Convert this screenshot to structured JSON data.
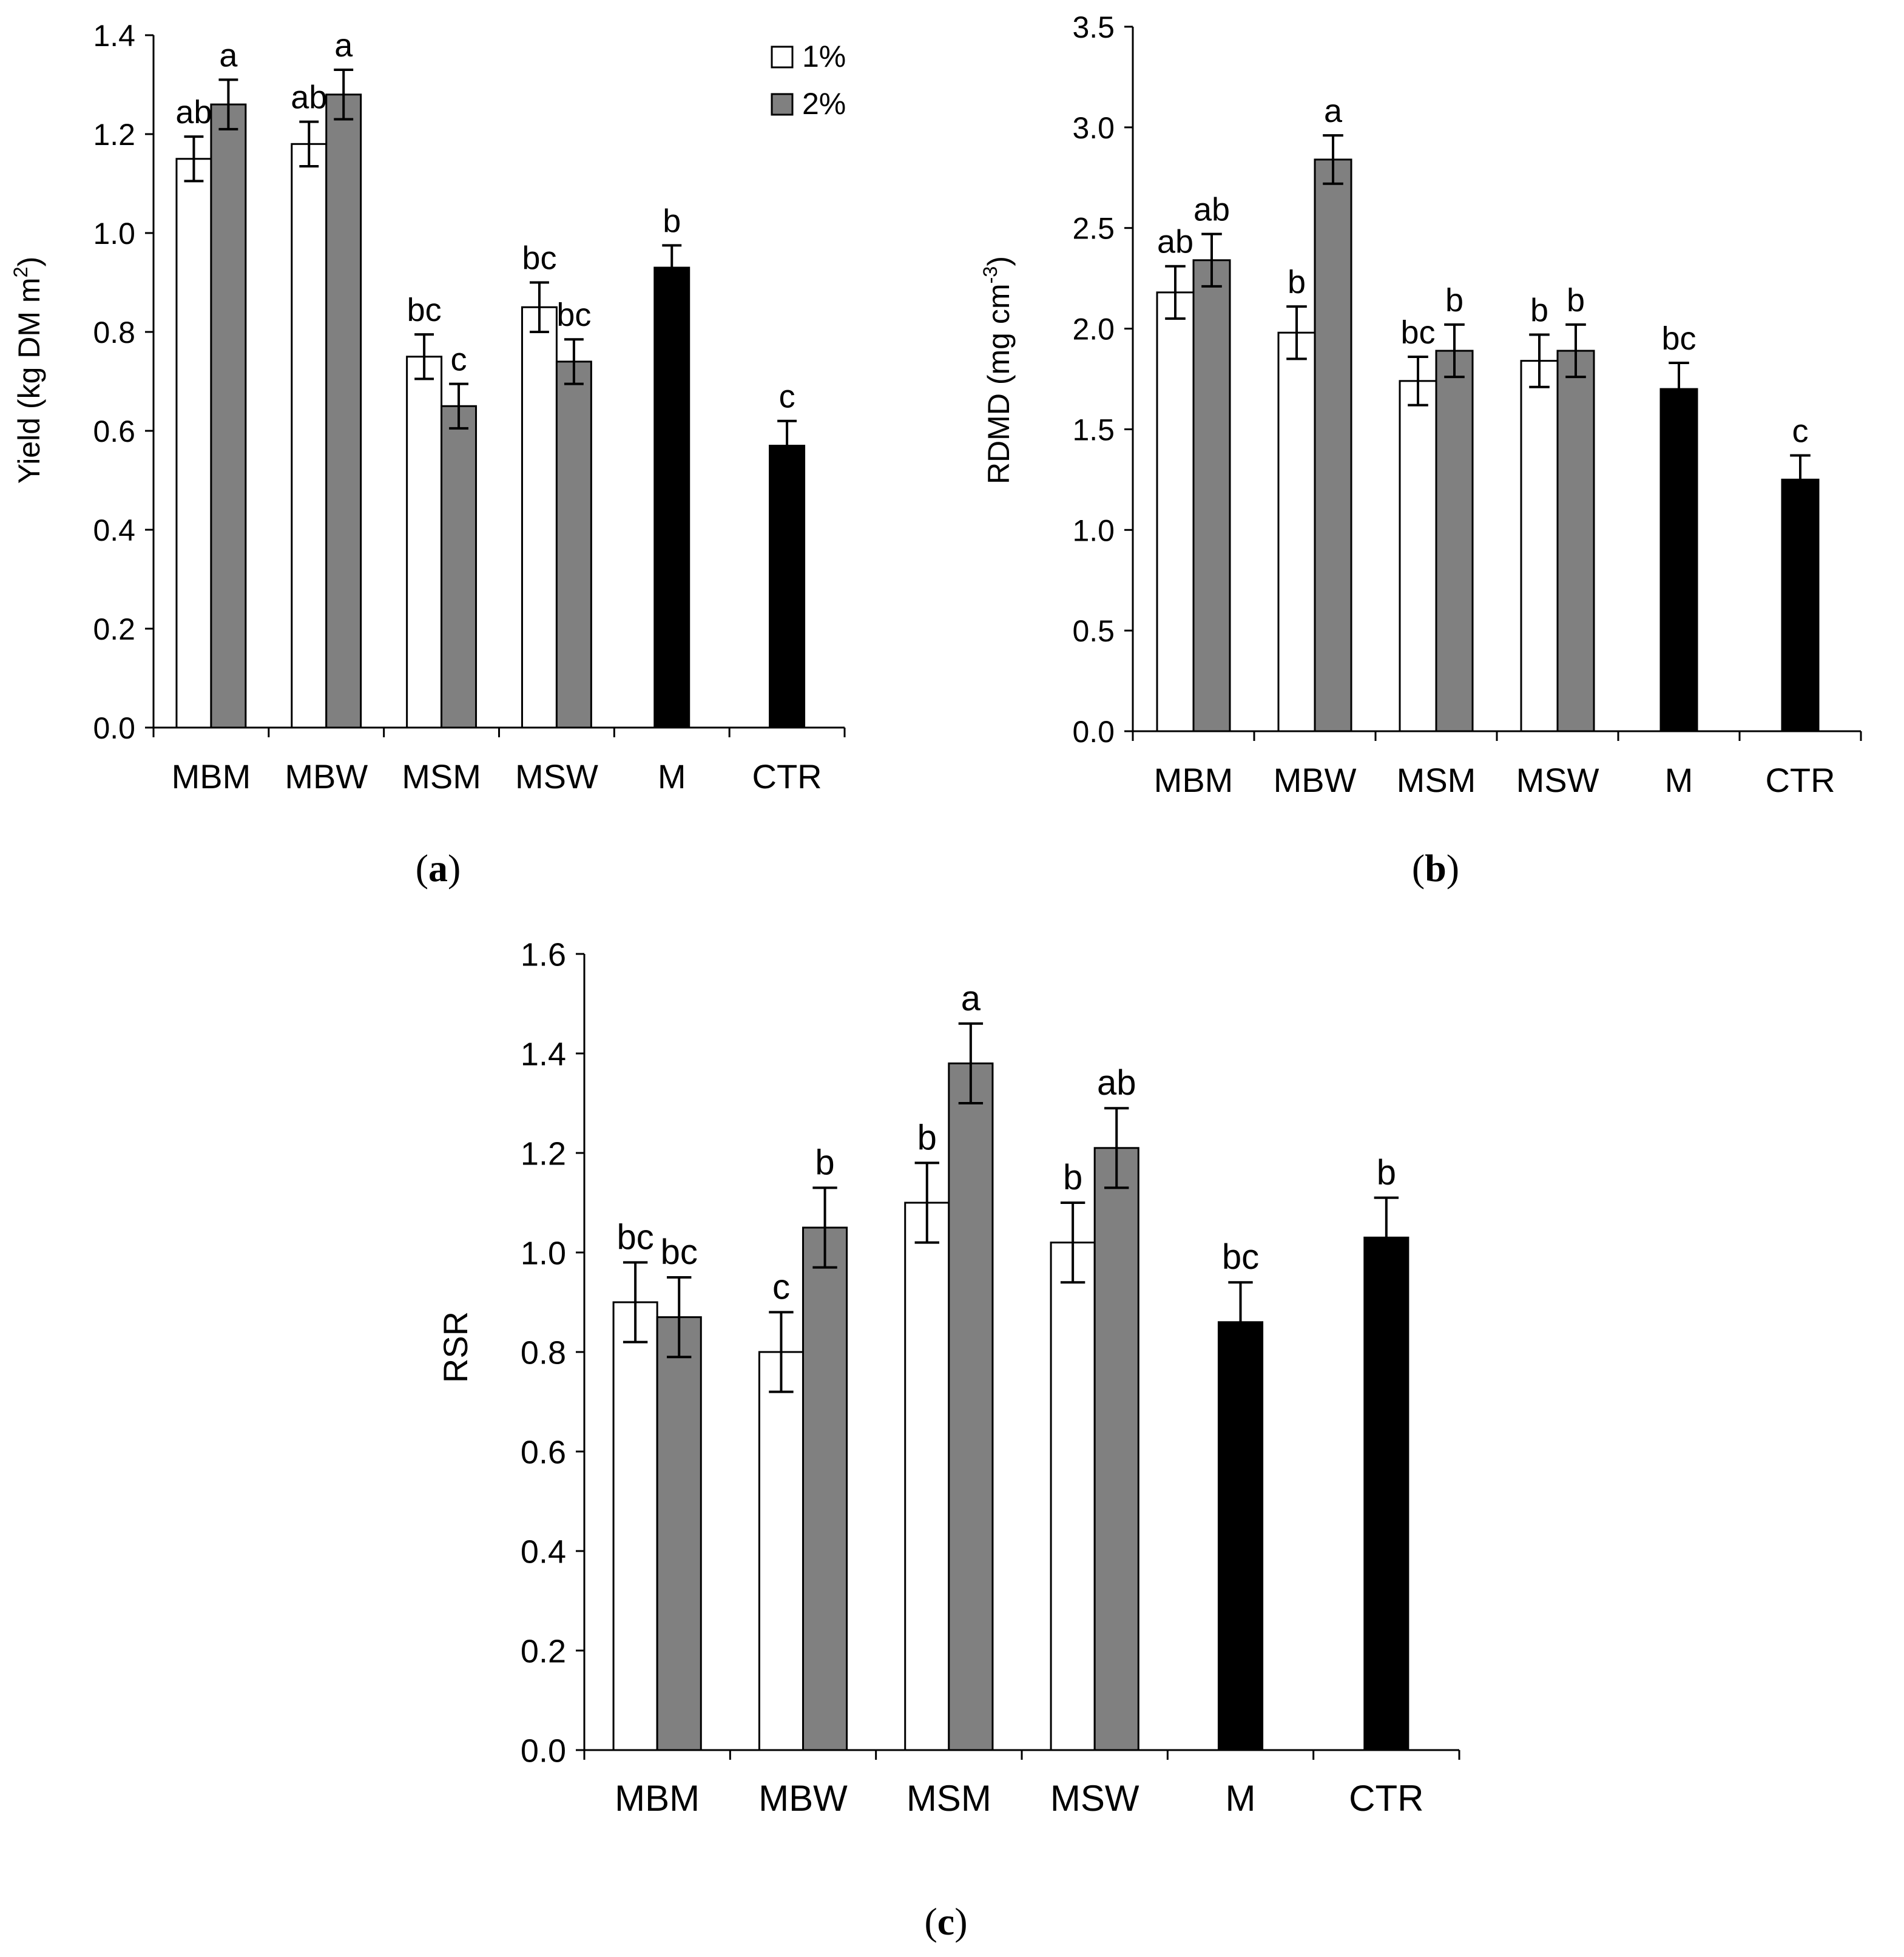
{
  "legend": {
    "items": [
      {
        "label": "1%",
        "color": "#ffffff"
      },
      {
        "label": "2%",
        "color": "#808080"
      }
    ]
  },
  "colors": {
    "one_pct": "#ffffff",
    "two_pct": "#808080",
    "single": "#000000",
    "axis": "#000000"
  },
  "chart_data": [
    {
      "type": "bar",
      "panel_label": "a",
      "ylabel": "Yield (kg DM m",
      "ylabel_sup": "2",
      "ylabel_tail": ")",
      "xlabel": "",
      "ylim": [
        0,
        1.4
      ],
      "yticks": [
        "0.0",
        "0.2",
        "0.4",
        "0.6",
        "0.8",
        "1.0",
        "1.2",
        "1.4"
      ],
      "categories": [
        "MBM",
        "MBW",
        "MSM",
        "MSW",
        "M",
        "CTR"
      ],
      "series": [
        {
          "name": "1%",
          "values": [
            1.15,
            1.18,
            0.75,
            0.85,
            null,
            null
          ],
          "errors": [
            0.045,
            0.045,
            0.045,
            0.05,
            null,
            null
          ],
          "letters": [
            "ab",
            "ab",
            "bc",
            "bc",
            null,
            null
          ]
        },
        {
          "name": "2%",
          "values": [
            1.26,
            1.28,
            0.65,
            0.74,
            null,
            null
          ],
          "errors": [
            0.05,
            0.05,
            0.045,
            0.045,
            null,
            null
          ],
          "letters": [
            "a",
            "a",
            "c",
            "bc",
            null,
            null
          ]
        },
        {
          "name": "single",
          "values": [
            null,
            null,
            null,
            null,
            0.93,
            0.57
          ],
          "errors": [
            null,
            null,
            null,
            null,
            0.045,
            0.05
          ],
          "letters": [
            null,
            null,
            null,
            null,
            "b",
            "c"
          ]
        }
      ]
    },
    {
      "type": "bar",
      "panel_label": "b",
      "ylabel": "RDMD (mg cm",
      "ylabel_sup": "-3",
      "ylabel_tail": ")",
      "xlabel": "",
      "ylim": [
        0,
        3.5
      ],
      "yticks": [
        "0.0",
        "0.5",
        "1.0",
        "1.5",
        "2.0",
        "2.5",
        "3.0",
        "3.5"
      ],
      "categories": [
        "MBM",
        "MBW",
        "MSM",
        "MSW",
        "M",
        "CTR"
      ],
      "series": [
        {
          "name": "1%",
          "values": [
            2.18,
            1.98,
            1.74,
            1.84,
            null,
            null
          ],
          "errors": [
            0.13,
            0.13,
            0.12,
            0.13,
            null,
            null
          ],
          "letters": [
            "ab",
            "b",
            "bc",
            "b",
            null,
            null
          ]
        },
        {
          "name": "2%",
          "values": [
            2.34,
            2.84,
            1.89,
            1.89,
            null,
            null
          ],
          "errors": [
            0.13,
            0.12,
            0.13,
            0.13,
            null,
            null
          ],
          "letters": [
            "ab",
            "a",
            "b",
            "b",
            null,
            null
          ]
        },
        {
          "name": "single",
          "values": [
            null,
            null,
            null,
            null,
            1.7,
            1.25
          ],
          "errors": [
            null,
            null,
            null,
            null,
            0.13,
            0.12
          ],
          "letters": [
            null,
            null,
            null,
            null,
            "bc",
            "c"
          ]
        }
      ]
    },
    {
      "type": "bar",
      "panel_label": "c",
      "ylabel": "RSR",
      "ylabel_sup": "",
      "ylabel_tail": "",
      "xlabel": "",
      "ylim": [
        0,
        1.6
      ],
      "yticks": [
        "0.0",
        "0.2",
        "0.4",
        "0.6",
        "0.8",
        "1.0",
        "1.2",
        "1.4",
        "1.6"
      ],
      "categories": [
        "MBM",
        "MBW",
        "MSM",
        "MSW",
        "M",
        "CTR"
      ],
      "series": [
        {
          "name": "1%",
          "values": [
            0.9,
            0.8,
            1.1,
            1.02,
            null,
            null
          ],
          "errors": [
            0.08,
            0.08,
            0.08,
            0.08,
            null,
            null
          ],
          "letters": [
            "bc",
            "c",
            "b",
            "b",
            null,
            null
          ]
        },
        {
          "name": "2%",
          "values": [
            0.87,
            1.05,
            1.38,
            1.21,
            null,
            null
          ],
          "errors": [
            0.08,
            0.08,
            0.08,
            0.08,
            null,
            null
          ],
          "letters": [
            "bc",
            "b",
            "a",
            "ab",
            null,
            null
          ]
        },
        {
          "name": "single",
          "values": [
            null,
            null,
            null,
            null,
            0.86,
            1.03
          ],
          "errors": [
            null,
            null,
            null,
            null,
            0.08,
            0.08
          ],
          "letters": [
            null,
            null,
            null,
            null,
            "bc",
            "b"
          ]
        }
      ]
    }
  ]
}
